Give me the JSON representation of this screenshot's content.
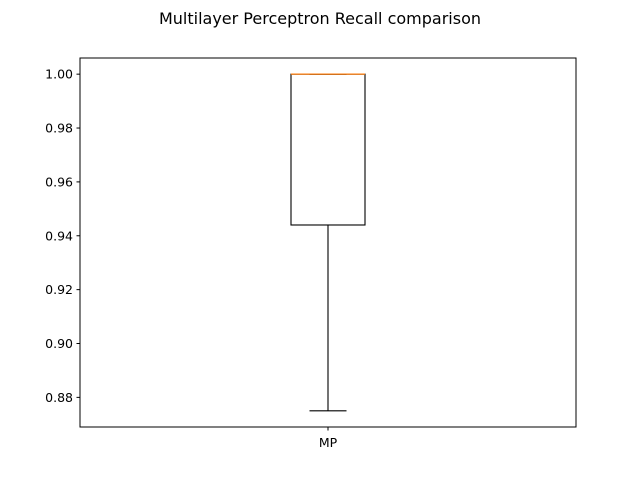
{
  "chart_data": {
    "type": "box",
    "title": "Multilayer Perceptron Recall comparison",
    "xlabel": "",
    "ylabel": "",
    "categories": [
      "MP"
    ],
    "boxes": [
      {
        "category": "MP",
        "whisker_low": 0.875,
        "q1": 0.944,
        "median": 1.0,
        "q3": 1.0,
        "whisker_high": 1.0
      }
    ],
    "ylim": [
      0.869,
      1.006
    ],
    "yticks": [
      0.88,
      0.9,
      0.92,
      0.94,
      0.96,
      0.98,
      1.0
    ],
    "ytick_labels": [
      "0.88",
      "0.90",
      "0.92",
      "0.94",
      "0.96",
      "0.98",
      "1.00"
    ],
    "grid": false,
    "colors": {
      "box": "#000000",
      "median": "#ff7f0e",
      "axes": "#000000"
    }
  }
}
